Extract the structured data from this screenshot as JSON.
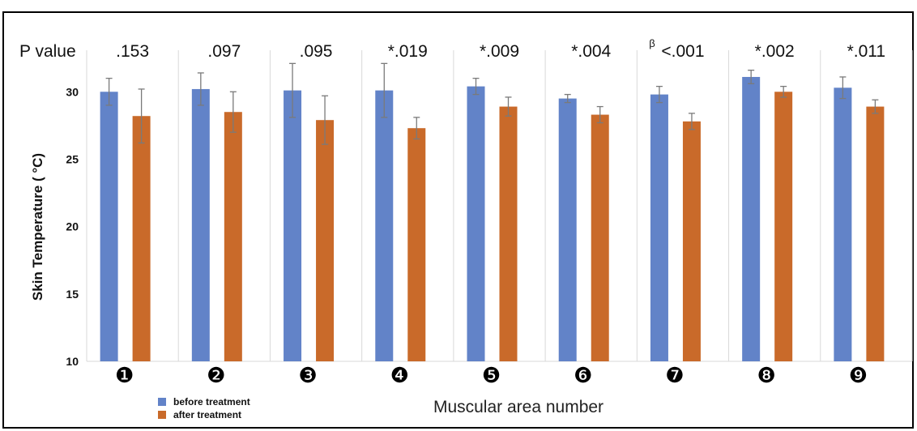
{
  "chart_data": {
    "type": "bar",
    "pvalue_label": "P value",
    "categories": [
      "❶",
      "❷",
      "❸",
      "❹",
      "❺",
      "❻",
      "❼",
      "❽",
      "❾"
    ],
    "p_values": [
      ".153",
      ".097",
      ".095",
      "*.019",
      "*.009",
      "*.004",
      "<.001",
      "*.002",
      "*.011"
    ],
    "p_superscripts": [
      "",
      "",
      "",
      "",
      "",
      "",
      "β",
      "",
      ""
    ],
    "series": [
      {
        "name": "before treatment",
        "color": "#6283c8",
        "values": [
          30.0,
          30.2,
          30.1,
          30.1,
          30.4,
          29.5,
          29.8,
          31.1,
          30.3
        ],
        "errors": [
          1.0,
          1.2,
          2.0,
          2.0,
          0.6,
          0.3,
          0.6,
          0.5,
          0.8
        ]
      },
      {
        "name": "after treatment",
        "color": "#c96a2a",
        "values": [
          28.2,
          28.5,
          27.9,
          27.3,
          28.9,
          28.3,
          27.8,
          30.0,
          28.9
        ],
        "errors": [
          2.0,
          1.5,
          1.8,
          0.8,
          0.7,
          0.6,
          0.6,
          0.4,
          0.5
        ]
      }
    ],
    "ylabel": "Skin Temperature ( °C)",
    "xlabel": "Muscular area number",
    "yticks": [
      10,
      15,
      20,
      25,
      30
    ],
    "ylim": [
      10,
      32
    ],
    "grid": "vertical separators",
    "legend_position": "bottom-left"
  }
}
